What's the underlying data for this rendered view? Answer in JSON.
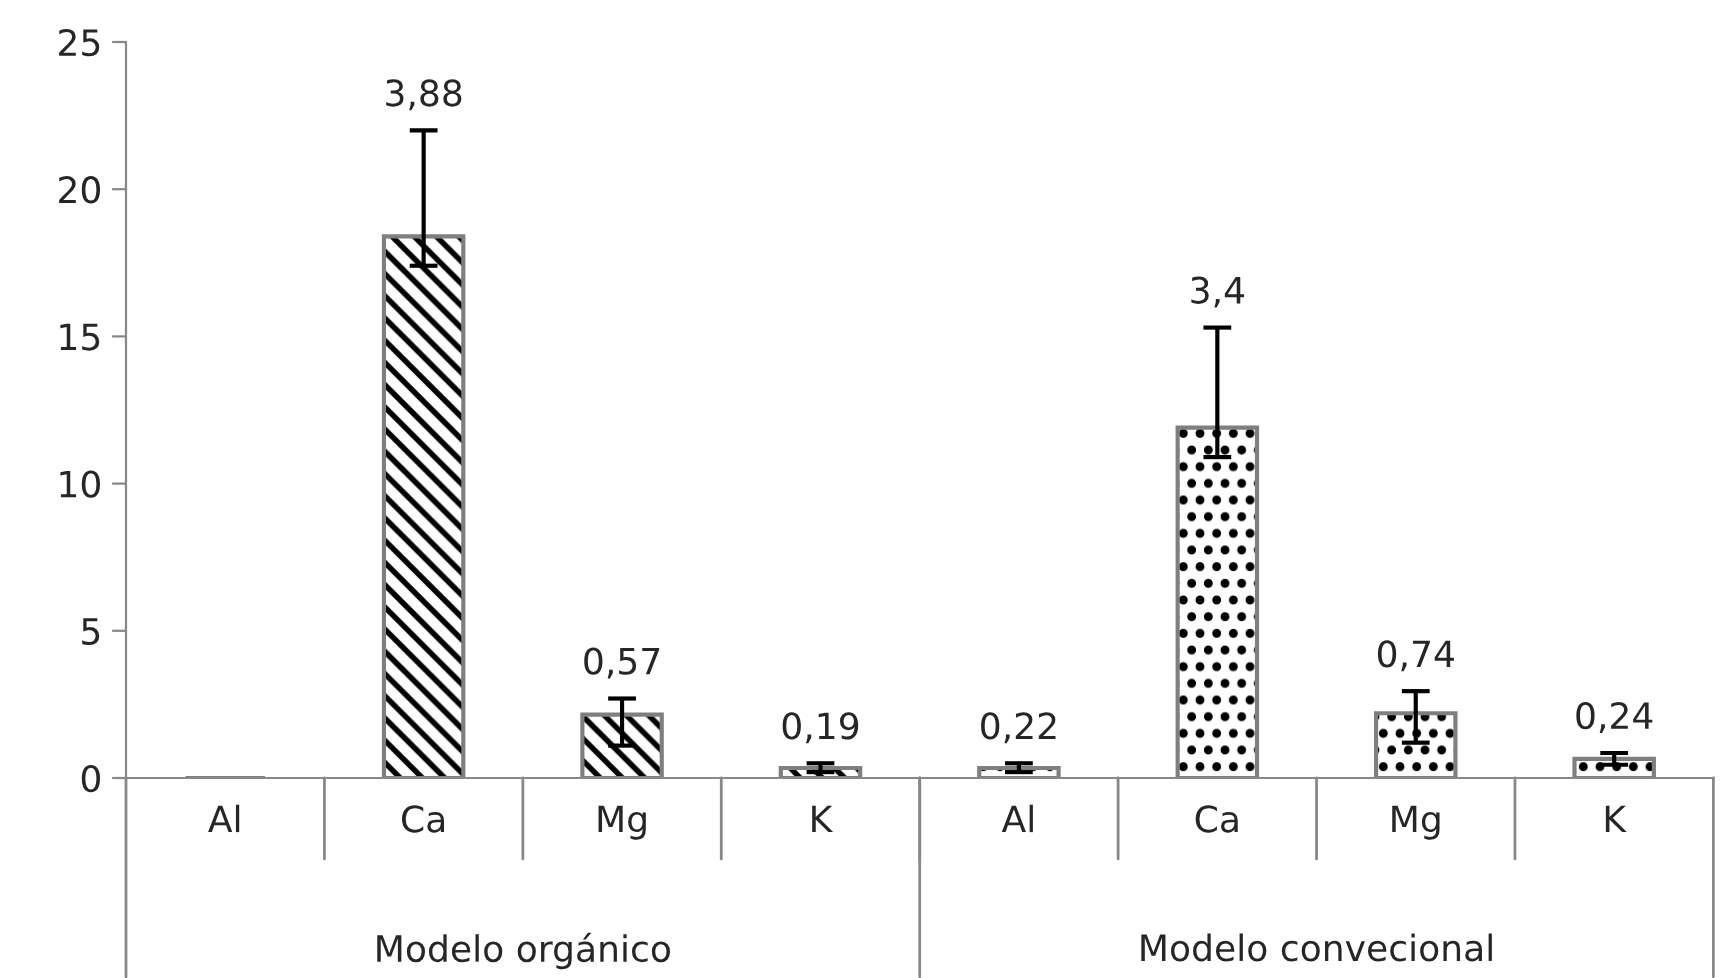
{
  "chart_data": {
    "type": "bar",
    "categories": [
      "Al",
      "Ca",
      "Mg",
      "K",
      "Al",
      "Ca",
      "Mg",
      "K"
    ],
    "series": [
      {
        "color": "#7f7f7f",
        "values": [
          0,
          18.4,
          2.15,
          0.34,
          null,
          null,
          null,
          null
        ],
        "errors": [
          null,
          [
            17.4,
            22.0
          ],
          [
            1.1,
            2.7
          ],
          [
            0.2,
            0.5
          ],
          null,
          null,
          null,
          null
        ]
      },
      {
        "color": "#7f7f7f",
        "values": [
          null,
          null,
          null,
          null,
          0.34,
          11.9,
          2.2,
          0.65
        ],
        "errors": [
          null,
          null,
          null,
          null,
          [
            0.2,
            0.5
          ],
          [
            10.9,
            15.3
          ],
          [
            1.2,
            2.95
          ],
          [
            0.45,
            0.85
          ]
        ]
      }
    ],
    "annotations": [
      "Modelo orgánico",
      "Modelo convecional",
      {
        "text": "3,88",
        "x": "Ca",
        "y": 22.0
      },
      {
        "text": "0,57",
        "x": "Mg",
        "y": 2.7
      },
      {
        "text": "0,19",
        "x": "K",
        "y": 0.5
      },
      "0,22",
      "3,4",
      "0,74",
      "0,24"
    ],
    "ylim": [
      0,
      25
    ],
    "yticks": [
      0,
      5,
      10,
      15,
      20,
      25
    ],
    "grid": false,
    "legend": false
  }
}
